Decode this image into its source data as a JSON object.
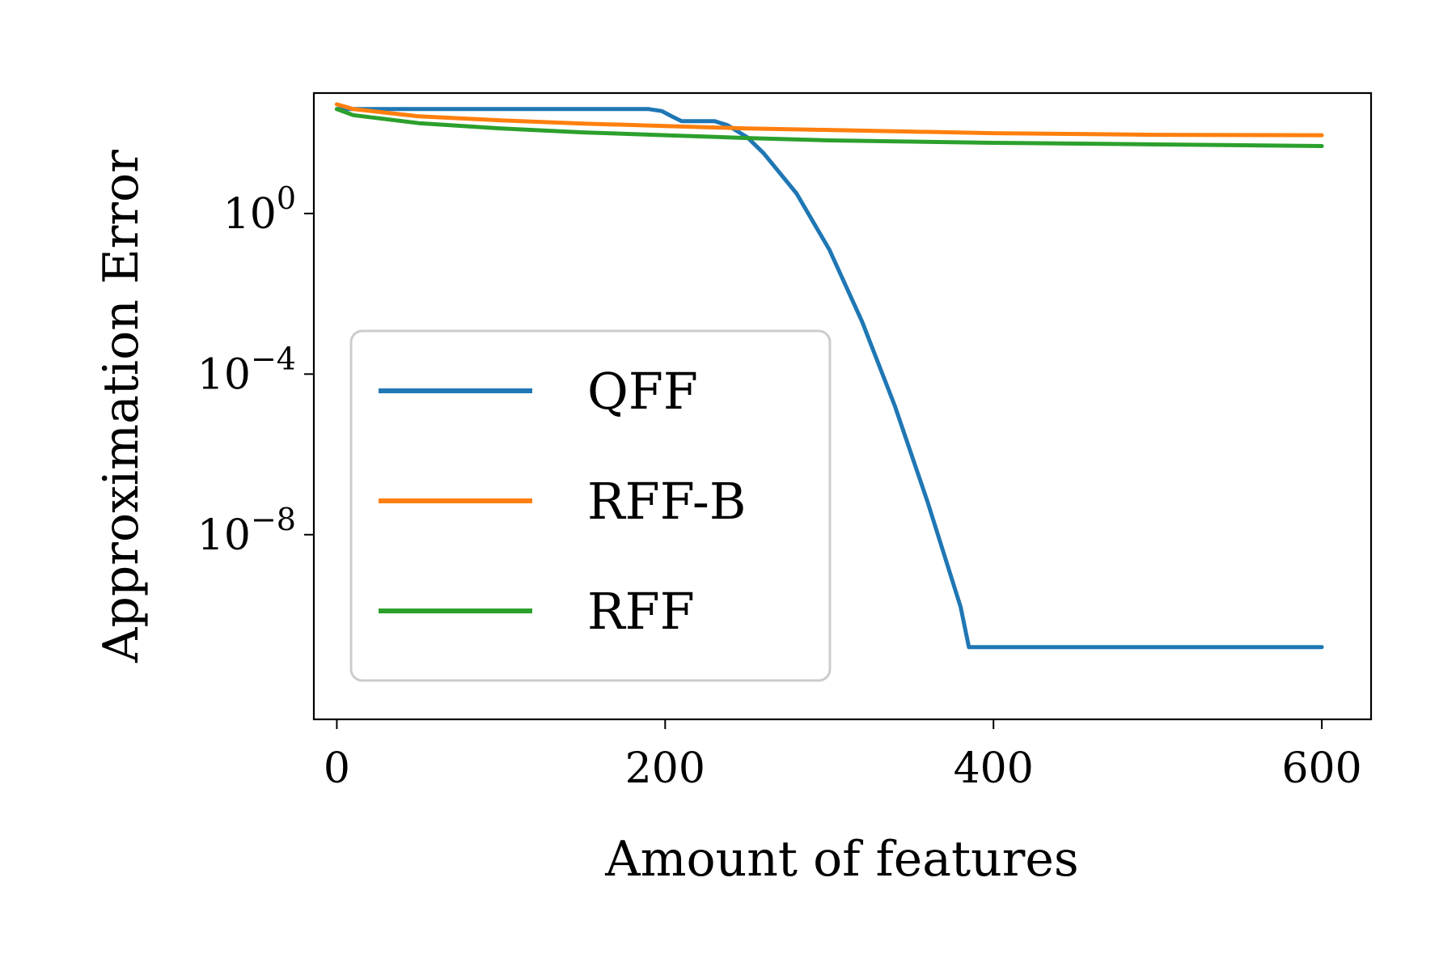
{
  "chart_data": {
    "type": "line",
    "xlabel": "Amount of features",
    "ylabel": "Approximation Error",
    "xlim": [
      -14,
      630
    ],
    "ylim_log10": [
      -12.6,
      3.0
    ],
    "yscale": "log",
    "x_ticks": [
      0,
      200,
      400,
      600
    ],
    "y_ticks": [
      {
        "exponent": 0,
        "base": "10",
        "sup": "0"
      },
      {
        "exponent": -4,
        "base": "10",
        "sup": "−4"
      },
      {
        "exponent": -8,
        "base": "10",
        "sup": "−8"
      }
    ],
    "grid": false,
    "legend": {
      "position": "center-left"
    },
    "series": [
      {
        "name": "QFF",
        "color": "#1f77b4",
        "x": [
          0,
          10,
          50,
          100,
          150,
          190,
          198,
          205,
          210,
          230,
          238,
          250,
          260,
          280,
          300,
          320,
          340,
          360,
          380,
          385,
          400,
          500,
          600
        ],
        "log10": [
          2.6,
          2.6,
          2.6,
          2.6,
          2.6,
          2.6,
          2.55,
          2.4,
          2.3,
          2.3,
          2.2,
          1.9,
          1.5,
          0.5,
          -0.9,
          -2.7,
          -4.8,
          -7.2,
          -9.8,
          -10.8,
          -10.8,
          -10.8,
          -10.8
        ]
      },
      {
        "name": "RFF-B",
        "color": "#ff7f0e",
        "x": [
          0,
          10,
          50,
          100,
          150,
          200,
          250,
          300,
          400,
          500,
          600
        ],
        "log10": [
          2.72,
          2.6,
          2.42,
          2.32,
          2.24,
          2.18,
          2.12,
          2.08,
          2.0,
          1.96,
          1.95
        ]
      },
      {
        "name": "RFF",
        "color": "#2ca02c",
        "x": [
          0,
          10,
          50,
          100,
          150,
          200,
          250,
          300,
          400,
          500,
          600
        ],
        "log10": [
          2.6,
          2.45,
          2.25,
          2.12,
          2.02,
          1.95,
          1.88,
          1.82,
          1.76,
          1.72,
          1.68
        ]
      }
    ]
  }
}
